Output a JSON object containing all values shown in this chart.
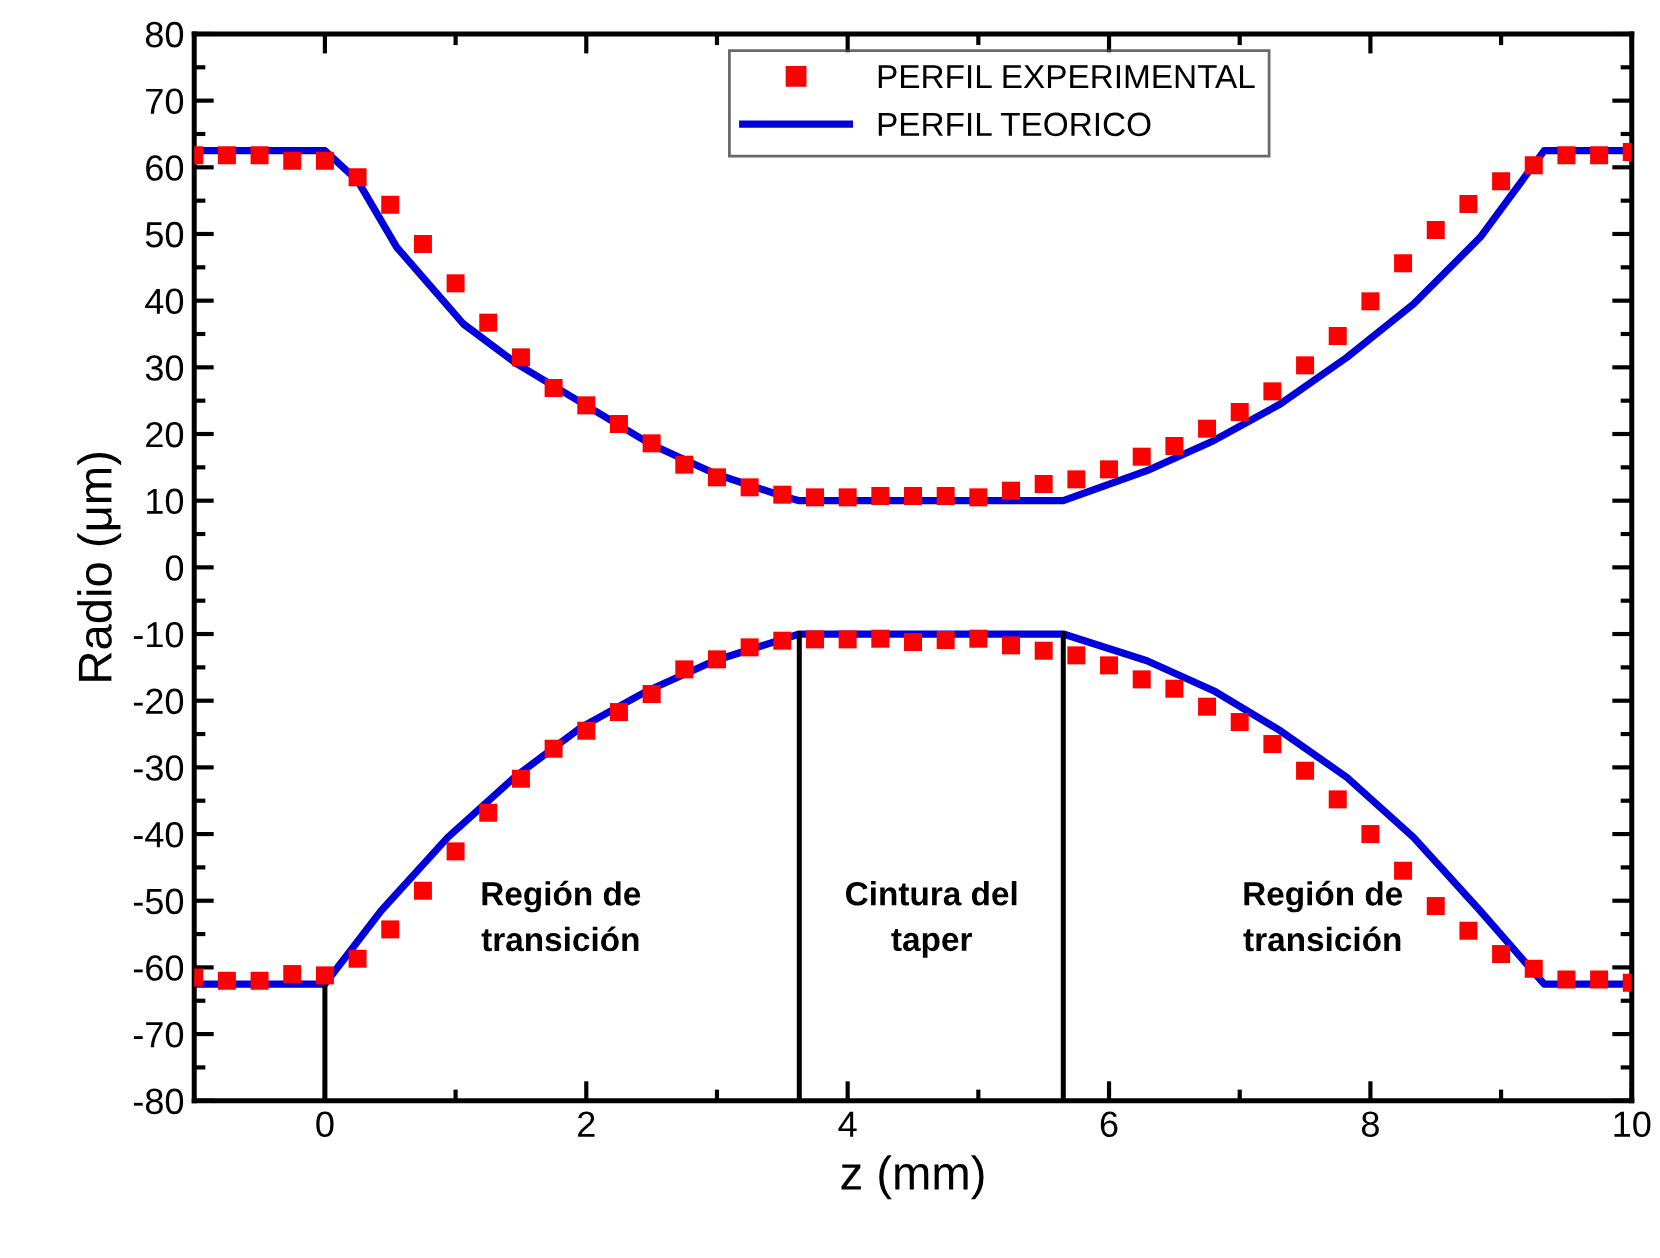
{
  "chart_data": {
    "type": "scatter",
    "xlabel": "z (mm)",
    "ylabel": "Radio (μm)",
    "xlim": [
      -1,
      10
    ],
    "ylim": [
      -80,
      80
    ],
    "xticks": [
      0,
      2,
      4,
      6,
      8,
      10
    ],
    "yticks": [
      -80,
      -70,
      -60,
      -50,
      -40,
      -30,
      -20,
      -10,
      0,
      10,
      20,
      30,
      40,
      50,
      60,
      70,
      80
    ],
    "grid": false,
    "legend": "top",
    "series": [
      {
        "name": "PERFIL EXPERIMENTAL",
        "marker": "square",
        "color": "#ff0000",
        "x": [
          -1,
          -0.75,
          -0.5,
          -0.25,
          0,
          0.25,
          0.5,
          0.75,
          1,
          1.25,
          1.5,
          1.75,
          2,
          2.25,
          2.5,
          2.75,
          3,
          3.25,
          3.5,
          3.75,
          4,
          4.25,
          4.5,
          4.75,
          5,
          5.25,
          5.5,
          5.75,
          6,
          6.25,
          6.5,
          6.75,
          7,
          7.25,
          7.5,
          7.75,
          8,
          8.25,
          8.5,
          8.75,
          9,
          9.25,
          9.5,
          9.75,
          10
        ],
        "values": [
          61.8,
          61.8,
          61.8,
          61,
          61,
          58.5,
          54.4,
          48.5,
          42.6,
          36.7,
          31.5,
          26.9,
          24.3,
          21.5,
          18.6,
          15.4,
          13.5,
          12,
          10.9,
          10.5,
          10.5,
          10.7,
          10.7,
          10.7,
          10.5,
          11.5,
          12.5,
          13.2,
          14.7,
          16.6,
          18.2,
          20.8,
          23.3,
          26.4,
          30.3,
          34.7,
          39.9,
          45.6,
          50.6,
          54.5,
          57.9,
          60.3,
          61.8,
          61.8,
          62.3
        ]
      },
      {
        "marker": "square",
        "color": "#ff0000",
        "x": [
          -1,
          -0.75,
          -0.5,
          -0.25,
          0,
          0.25,
          0.5,
          0.75,
          1,
          1.25,
          1.5,
          1.75,
          2,
          2.25,
          2.5,
          2.75,
          3,
          3.25,
          3.5,
          3.75,
          4,
          4.25,
          4.5,
          4.75,
          5,
          5.25,
          5.5,
          5.75,
          6,
          6.25,
          6.5,
          6.75,
          7,
          7.25,
          7.5,
          7.75,
          8,
          8.25,
          8.5,
          8.75,
          9,
          9.25,
          9.5,
          9.75,
          10
        ],
        "values": [
          -61.5,
          -62,
          -62,
          -61,
          -61.2,
          -58.7,
          -54.3,
          -48.5,
          -42.6,
          -36.8,
          -31.7,
          -27.2,
          -24.5,
          -21.7,
          -19,
          -15.3,
          -13.8,
          -12,
          -11,
          -10.8,
          -10.8,
          -10.7,
          -11.2,
          -10.9,
          -10.7,
          -11.7,
          -12.5,
          -13.2,
          -14.7,
          -16.8,
          -18.2,
          -20.9,
          -23.2,
          -26.5,
          -30.5,
          -34.8,
          -40,
          -45.5,
          -50.8,
          -54.5,
          -58,
          -60.2,
          -61.8,
          -61.8,
          -62.3
        ]
      },
      {
        "name": "PERFIL TEORICO",
        "type": "line",
        "marker": "none",
        "line_style": "solid",
        "color": "#0000dd",
        "x": [
          -1,
          0,
          0.25,
          0.55,
          1.06,
          1.47,
          1.98,
          2.49,
          2.99,
          3.5,
          3.63,
          5.65,
          6.29,
          6.8,
          7.31,
          7.82,
          8.33,
          8.84,
          9.33,
          10
        ],
        "values": [
          62.5,
          62.5,
          58,
          48,
          36.5,
          30.5,
          24.5,
          18.5,
          14,
          10.7,
          10,
          10,
          14.5,
          19,
          24.5,
          31.5,
          39.5,
          49.5,
          62.5,
          62.5
        ]
      },
      {
        "type": "line",
        "marker": "none",
        "line_style": "solid",
        "color": "#0000dd",
        "x": [
          -1,
          0,
          0.43,
          0.94,
          1.45,
          1.96,
          2.47,
          2.98,
          3.63,
          5.65,
          6.29,
          6.8,
          7.31,
          7.82,
          8.33,
          8.84,
          9.33,
          10
        ],
        "values": [
          -62.5,
          -62.5,
          -51.5,
          -40.5,
          -31.5,
          -24,
          -18.5,
          -14,
          -10,
          -10,
          -14,
          -18.5,
          -24.5,
          -31.5,
          -40.5,
          -51.5,
          -62.5,
          -62.5
        ]
      },
      {
        "type": "line",
        "marker": "none",
        "line_style": "solid",
        "color": "#000000",
        "x": [
          0,
          0
        ],
        "values": [
          -80,
          -62.5
        ]
      },
      {
        "type": "line",
        "marker": "none",
        "line_style": "solid",
        "color": "#000000",
        "x": [
          3.63,
          3.63
        ],
        "values": [
          -80,
          -10
        ]
      },
      {
        "type": "line",
        "marker": "none",
        "line_style": "solid",
        "color": "#000000",
        "x": [
          5.65,
          5.65
        ],
        "values": [
          -80,
          -10
        ]
      }
    ],
    "annotations": [
      "Región de\ntransición",
      "Cintura del\ntaper",
      "Región de\ntransición"
    ]
  }
}
